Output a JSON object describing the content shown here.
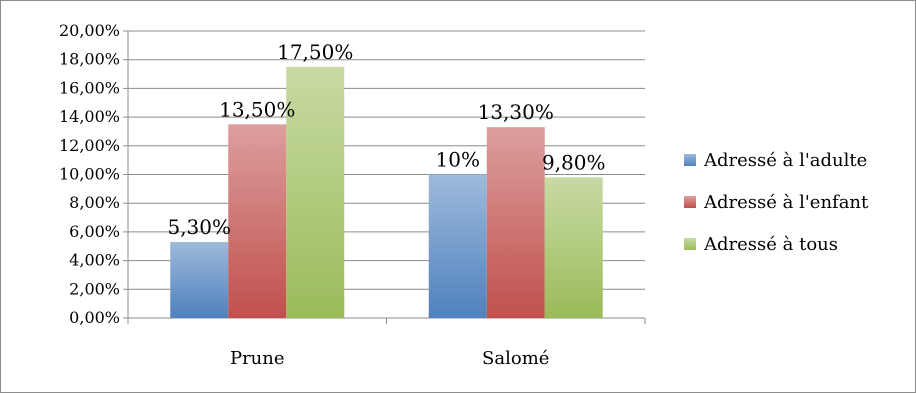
{
  "chart_data": {
    "type": "bar",
    "title": "",
    "xlabel": "",
    "ylabel": "",
    "categories": [
      "Prune",
      "Salomé"
    ],
    "series": [
      {
        "name": "Adressé à l'adulte",
        "values": [
          5.3,
          10.0
        ],
        "labels": [
          "5,30%",
          "10%"
        ],
        "color": "#4f81bd"
      },
      {
        "name": "Adressé à l'enfant",
        "values": [
          13.5,
          13.3
        ],
        "labels": [
          "13,50%",
          "13,30%"
        ],
        "color": "#c0504d"
      },
      {
        "name": "Adressé à tous",
        "values": [
          17.5,
          9.8
        ],
        "labels": [
          "17,50%",
          "9,80%"
        ],
        "color": "#9bbb59"
      }
    ],
    "ylim": [
      0,
      20
    ],
    "yticks": [
      0,
      2,
      4,
      6,
      8,
      10,
      12,
      14,
      16,
      18,
      20
    ],
    "ytick_labels": [
      "0,00%",
      "2,00%",
      "4,00%",
      "6,00%",
      "8,00%",
      "10,00%",
      "12,00%",
      "14,00%",
      "16,00%",
      "18,00%",
      "20,00%"
    ],
    "grid": true,
    "legend_position": "right"
  }
}
